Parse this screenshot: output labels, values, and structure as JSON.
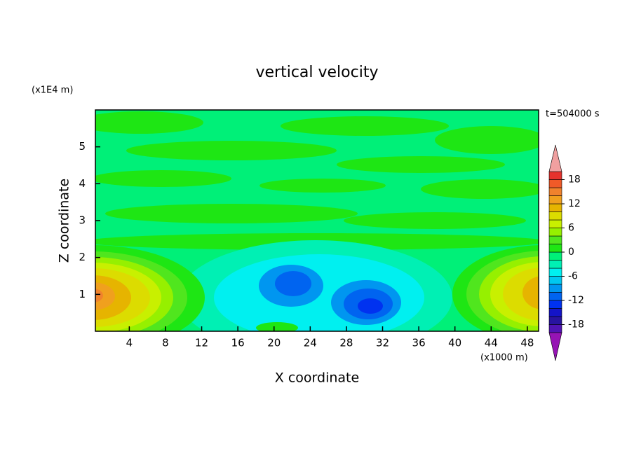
{
  "chart_data": {
    "type": "contour",
    "title": "vertical velocity",
    "x_label": "X coordinate",
    "y_label": "Z coordinate",
    "x_unit": "(x1000 m)",
    "y_unit": "(x1E4 m)",
    "annotation": "t=504000 s",
    "xlim": [
      0.25,
      49.25
    ],
    "xticks": [
      4,
      8,
      12,
      16,
      20,
      24,
      28,
      32,
      36,
      40,
      44,
      48
    ],
    "ylim": [
      0,
      6
    ],
    "yticks": [
      1,
      2,
      3,
      4,
      5
    ],
    "colorbar": {
      "levels": [
        -20,
        -18,
        -16,
        -14,
        -12,
        -10,
        -8,
        -6,
        -4,
        -2,
        0,
        2,
        4,
        6,
        8,
        10,
        12,
        14,
        16,
        18,
        20
      ],
      "colors": [
        "#5014b4",
        "#2814a0",
        "#1414c8",
        "#0032f0",
        "#0064f0",
        "#0096f0",
        "#00c8f0",
        "#00f0f0",
        "#00f0b4",
        "#00f078",
        "#1ee614",
        "#50e61e",
        "#96f000",
        "#c8f000",
        "#dcdc00",
        "#e6b400",
        "#f0a01e",
        "#f0822d",
        "#f05a28",
        "#e6322d"
      ],
      "under_color": "#9614b4",
      "over_color": "#f0a0a0",
      "ticks": [
        -18,
        -12,
        -6,
        0,
        6,
        12,
        18
      ]
    }
  }
}
